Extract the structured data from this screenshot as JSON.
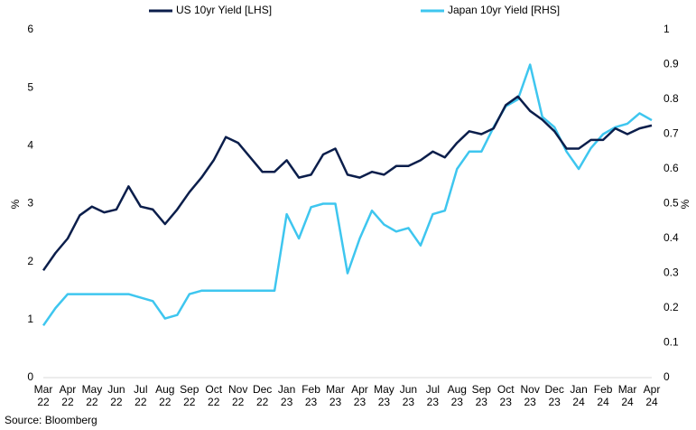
{
  "chart_data": {
    "type": "line",
    "categories": [
      "Mar 22",
      null,
      "Apr 22",
      null,
      "May 22",
      null,
      "Jun 22",
      null,
      "Jul 22",
      null,
      "Aug 22",
      null,
      "Sep 22",
      null,
      "Oct 22",
      null,
      "Nov 22",
      null,
      "Dec 22",
      null,
      "Jan 23",
      null,
      "Feb 23",
      null,
      "Mar 23",
      null,
      "Apr 23",
      null,
      "May 23",
      null,
      "Jun 23",
      null,
      "Jul 23",
      null,
      "Aug 23",
      null,
      "Sep 23",
      null,
      "Oct 23",
      null,
      "Nov 23",
      null,
      "Dec 23",
      null,
      "Jan 24",
      null,
      "Feb 24",
      null,
      "Mar 24",
      null,
      "Apr 24"
    ],
    "series": [
      {
        "name": "US 10yr Yield [LHS]",
        "color": "#0b1e4b",
        "axis": "y",
        "values": [
          1.85,
          2.15,
          2.4,
          2.8,
          2.95,
          2.85,
          2.9,
          3.3,
          2.95,
          2.9,
          2.65,
          2.9,
          3.2,
          3.45,
          3.75,
          4.15,
          4.05,
          3.8,
          3.55,
          3.55,
          3.75,
          3.45,
          3.5,
          3.85,
          3.95,
          3.5,
          3.45,
          3.55,
          3.5,
          3.65,
          3.65,
          3.75,
          3.9,
          3.8,
          4.05,
          4.25,
          4.2,
          4.3,
          4.7,
          4.85,
          4.6,
          4.45,
          4.25,
          3.95,
          3.95,
          4.1,
          4.1,
          4.3,
          4.2,
          4.3,
          4.35
        ]
      },
      {
        "name": "Japan 10yr Yield [RHS]",
        "color": "#3ec6ef",
        "axis": "y2",
        "values": [
          0.15,
          0.2,
          0.24,
          0.24,
          0.24,
          0.24,
          0.24,
          0.24,
          0.23,
          0.22,
          0.17,
          0.18,
          0.24,
          0.25,
          0.25,
          0.25,
          0.25,
          0.25,
          0.25,
          0.25,
          0.47,
          0.4,
          0.49,
          0.5,
          0.5,
          0.3,
          0.4,
          0.48,
          0.44,
          0.42,
          0.43,
          0.38,
          0.47,
          0.48,
          0.6,
          0.65,
          0.65,
          0.72,
          0.78,
          0.8,
          0.9,
          0.75,
          0.72,
          0.65,
          0.6,
          0.66,
          0.7,
          0.72,
          0.73,
          0.76,
          0.74
        ]
      }
    ],
    "ylabel": "%",
    "y2label": "%",
    "ylim": [
      0,
      6
    ],
    "yticks": [
      0,
      1,
      2,
      3,
      4,
      5,
      6
    ],
    "y2lim": [
      0,
      1
    ],
    "y2ticks": [
      0,
      0.1,
      0.2,
      0.3,
      0.4,
      0.5,
      0.6,
      0.7,
      0.8,
      0.9,
      1
    ],
    "source": "Source: Bloomberg",
    "legend": "top"
  }
}
